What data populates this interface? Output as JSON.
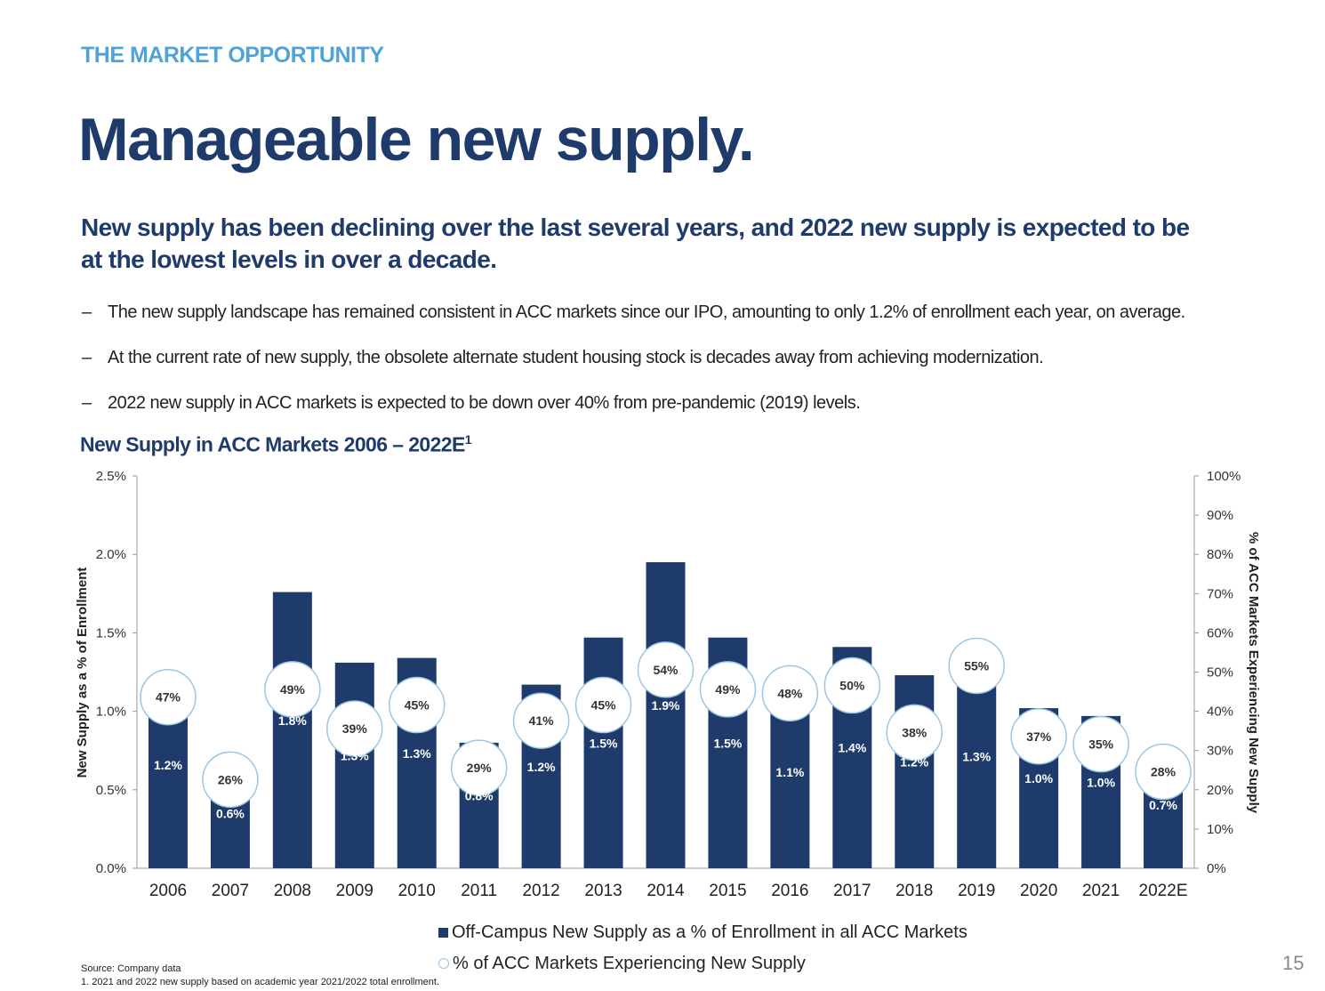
{
  "header": {
    "section_label": "THE MARKET OPPORTUNITY",
    "title": "Manageable new supply.",
    "subtitle": "New supply has been declining over the last several years, and 2022 new supply is expected to be at the lowest levels in over a decade."
  },
  "bullets": [
    {
      "marker": "–",
      "text": "The new supply landscape has remained consistent in ACC markets since our IPO, amounting to only 1.2% of enrollment each year, on average."
    },
    {
      "marker": "–",
      "text": "At the current rate of new supply, the obsolete alternate student housing stock is decades away from achieving modernization."
    },
    {
      "marker": "–",
      "text": "2022 new supply in ACC markets is expected to be down over 40% from pre-pandemic (2019) levels."
    }
  ],
  "chart_heading": {
    "text": "New Supply in ACC Markets 2006 – 2022E",
    "footnote_mark": "1"
  },
  "chart_data": {
    "type": "bar",
    "title": "New Supply in ACC Markets 2006 – 2022E",
    "categories": [
      "2006",
      "2007",
      "2008",
      "2009",
      "2010",
      "2011",
      "2012",
      "2013",
      "2014",
      "2015",
      "2016",
      "2017",
      "2018",
      "2019",
      "2020",
      "2021",
      "2022E"
    ],
    "series": [
      {
        "name": "Off-Campus New Supply as a % of Enrollment in all ACC Markets",
        "axis": "left",
        "values": [
          1.2,
          0.6,
          1.8,
          1.3,
          1.3,
          0.8,
          1.2,
          1.5,
          1.9,
          1.5,
          1.1,
          1.4,
          1.2,
          1.3,
          1.0,
          1.0,
          0.7
        ],
        "bar_values": [
          1.19,
          0.57,
          1.76,
          1.31,
          1.34,
          0.8,
          1.17,
          1.47,
          1.95,
          1.47,
          1.1,
          1.41,
          1.23,
          1.3,
          1.02,
          0.97,
          0.68
        ],
        "labels": [
          "1.2%",
          "0.6%",
          "1.8%",
          "1.3%",
          "1.3%",
          "0.8%",
          "1.2%",
          "1.5%",
          "1.9%",
          "1.5%",
          "1.1%",
          "1.4%",
          "1.2%",
          "1.3%",
          "1.0%",
          "1.0%",
          "0.7%"
        ],
        "color": "#1f3b6b"
      },
      {
        "name": "% of ACC Markets Experiencing New Supply",
        "axis": "right",
        "values": [
          47,
          26,
          49,
          39,
          45,
          29,
          41,
          45,
          54,
          49,
          48,
          50,
          38,
          55,
          37,
          35,
          28
        ],
        "labels": [
          "47%",
          "26%",
          "49%",
          "39%",
          "45%",
          "29%",
          "41%",
          "45%",
          "54%",
          "49%",
          "48%",
          "50%",
          "38%",
          "55%",
          "37%",
          "35%",
          "28%"
        ],
        "color": "#9cc6e4"
      }
    ],
    "ylabel": "New Supply as a % of Enrollment",
    "y2label": "% of ACC Markets Experiencing New Supply",
    "ylim": [
      0,
      2.5
    ],
    "y2lim": [
      0,
      100
    ],
    "yticks": [
      "0.0%",
      "0.5%",
      "1.0%",
      "1.5%",
      "2.0%",
      "2.5%"
    ],
    "y2ticks": [
      "0%",
      "10%",
      "20%",
      "30%",
      "40%",
      "50%",
      "60%",
      "70%",
      "80%",
      "90%",
      "100%"
    ],
    "grid": false,
    "legend_position": "bottom"
  },
  "footer": {
    "source": "Source: Company data",
    "note": "1. 2021 and 2022 new supply based on academic year 2021/2022 total enrollment.",
    "page_number": "15"
  }
}
